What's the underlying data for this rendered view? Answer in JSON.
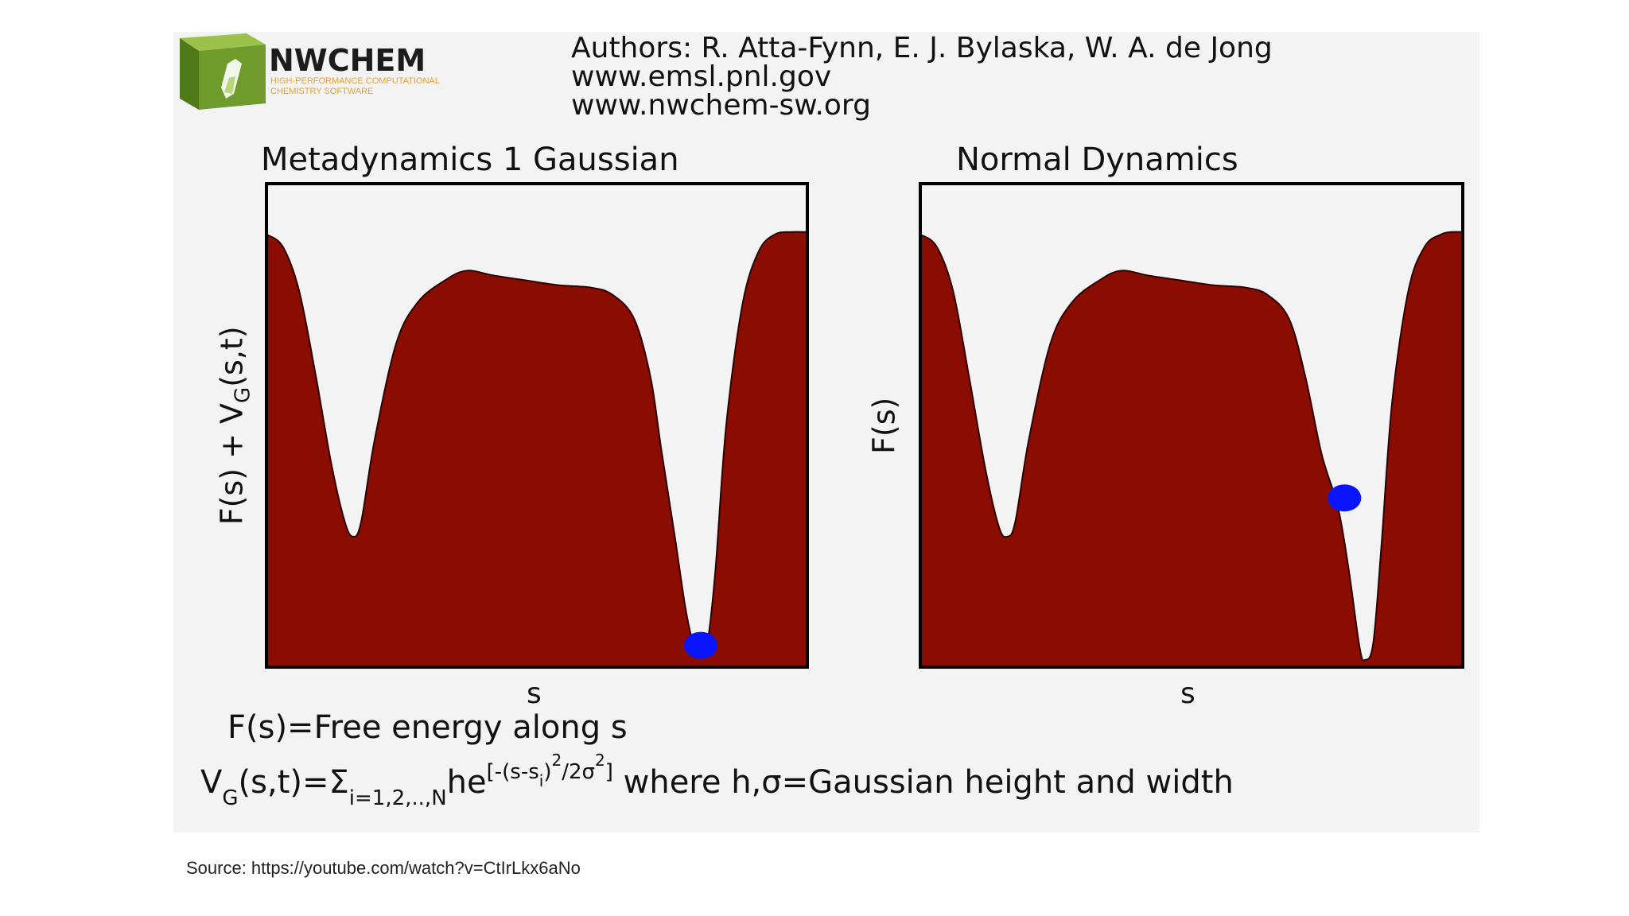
{
  "header": {
    "logo_name": "NWCHEM",
    "logo_subtitle_1": "HIGH-PERFORMANCE COMPUTATIONAL",
    "logo_subtitle_2": "CHEMISTRY SOFTWARE",
    "authors": "Authors: R. Atta-Fynn, E. J. Bylaska,  W. A. de Jong",
    "url_1": "www.emsl.pnl.gov",
    "url_2": "www.nwchem-sw.org"
  },
  "chart_data": [
    {
      "type": "area",
      "title": "Metadynamics 1 Gaussian",
      "xlabel": "s",
      "ylabel_main": "F(s) + V",
      "ylabel_sub": "G",
      "ylabel_end": "(s,t)",
      "xlim": [
        0,
        1
      ],
      "ylim": [
        0,
        1
      ],
      "fill_color": "#8b0d02",
      "ball_color": "#0a14ff",
      "ball": {
        "x": 0.803,
        "y": 0.045
      },
      "x": [
        0,
        0.03,
        0.06,
        0.09,
        0.12,
        0.145,
        0.16,
        0.175,
        0.2,
        0.24,
        0.28,
        0.33,
        0.37,
        0.42,
        0.48,
        0.54,
        0.6,
        0.64,
        0.68,
        0.71,
        0.73,
        0.755,
        0.775,
        0.79,
        0.8,
        0.815,
        0.83,
        0.85,
        0.88,
        0.91,
        0.94,
        0.97,
        1.0
      ],
      "y": [
        0.895,
        0.87,
        0.78,
        0.61,
        0.42,
        0.3,
        0.27,
        0.3,
        0.47,
        0.67,
        0.755,
        0.8,
        0.82,
        0.81,
        0.8,
        0.79,
        0.785,
        0.77,
        0.72,
        0.6,
        0.45,
        0.27,
        0.12,
        0.045,
        0.03,
        0.05,
        0.2,
        0.5,
        0.75,
        0.86,
        0.895,
        0.9,
        0.9
      ]
    },
    {
      "type": "area",
      "title": "Normal Dynamics",
      "xlabel": "s",
      "ylabel_main": "F(s)",
      "ylabel_sub": "",
      "ylabel_end": "",
      "xlim": [
        0,
        1
      ],
      "ylim": [
        0,
        1
      ],
      "fill_color": "#8b0d02",
      "ball_color": "#0a14ff",
      "ball": {
        "x": 0.782,
        "y": 0.35
      },
      "x": [
        0,
        0.03,
        0.06,
        0.09,
        0.12,
        0.145,
        0.16,
        0.175,
        0.2,
        0.24,
        0.28,
        0.33,
        0.37,
        0.42,
        0.48,
        0.54,
        0.6,
        0.64,
        0.68,
        0.71,
        0.74,
        0.77,
        0.79,
        0.81,
        0.82,
        0.835,
        0.85,
        0.87,
        0.9,
        0.93,
        0.96,
        0.98,
        1.0
      ],
      "y": [
        0.895,
        0.87,
        0.78,
        0.6,
        0.41,
        0.29,
        0.27,
        0.3,
        0.47,
        0.67,
        0.755,
        0.8,
        0.82,
        0.81,
        0.8,
        0.79,
        0.785,
        0.77,
        0.72,
        0.6,
        0.44,
        0.33,
        0.2,
        0.04,
        0.015,
        0.05,
        0.25,
        0.55,
        0.78,
        0.87,
        0.895,
        0.9,
        0.9
      ]
    }
  ],
  "caption": "F(s)=Free energy along s",
  "formula": {
    "v": "V",
    "v_sub": "G",
    "args": "(s,t)=Σ",
    "sum_sub": "i=1,2,..,N",
    "he": "he",
    "exp_a": "[-(s-s",
    "exp_i": "i",
    "exp_b": ")",
    "exp_c": "2",
    "exp_d": "/2σ",
    "exp_e": "2",
    "exp_f": "]",
    "rest": " where  h,σ=Gaussian height and width"
  },
  "source": "Source: https://youtube.com/watch?v=CtIrLkx6aNo"
}
